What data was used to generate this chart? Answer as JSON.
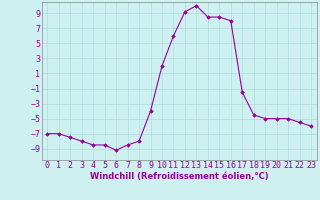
{
  "x": [
    0,
    1,
    2,
    3,
    4,
    5,
    6,
    7,
    8,
    9,
    10,
    11,
    12,
    13,
    14,
    15,
    16,
    17,
    18,
    19,
    20,
    21,
    22,
    23
  ],
  "y": [
    -7,
    -7,
    -7.5,
    -8,
    -8.5,
    -8.5,
    -9.2,
    -8.5,
    -8,
    -4,
    2,
    6,
    9.2,
    10,
    8.5,
    8.5,
    8,
    -1.5,
    -4.5,
    -5,
    -5,
    -5,
    -5.5,
    -6
  ],
  "line_color": "#990099",
  "marker": "D",
  "marker_size": 1.8,
  "linewidth": 0.8,
  "background_color": "#cff0f0",
  "grid_color": "#aadddd",
  "xlabel": "Windchill (Refroidissement éolien,°C)",
  "xlabel_fontsize": 6.0,
  "tick_fontsize": 6.0,
  "ylim": [
    -10.5,
    10.5
  ],
  "yticks": [
    -9,
    -7,
    -5,
    -3,
    -1,
    1,
    3,
    5,
    7,
    9
  ],
  "xlim": [
    -0.5,
    23.5
  ],
  "xticks": [
    0,
    1,
    2,
    3,
    4,
    5,
    6,
    7,
    8,
    9,
    10,
    11,
    12,
    13,
    14,
    15,
    16,
    17,
    18,
    19,
    20,
    21,
    22,
    23
  ]
}
